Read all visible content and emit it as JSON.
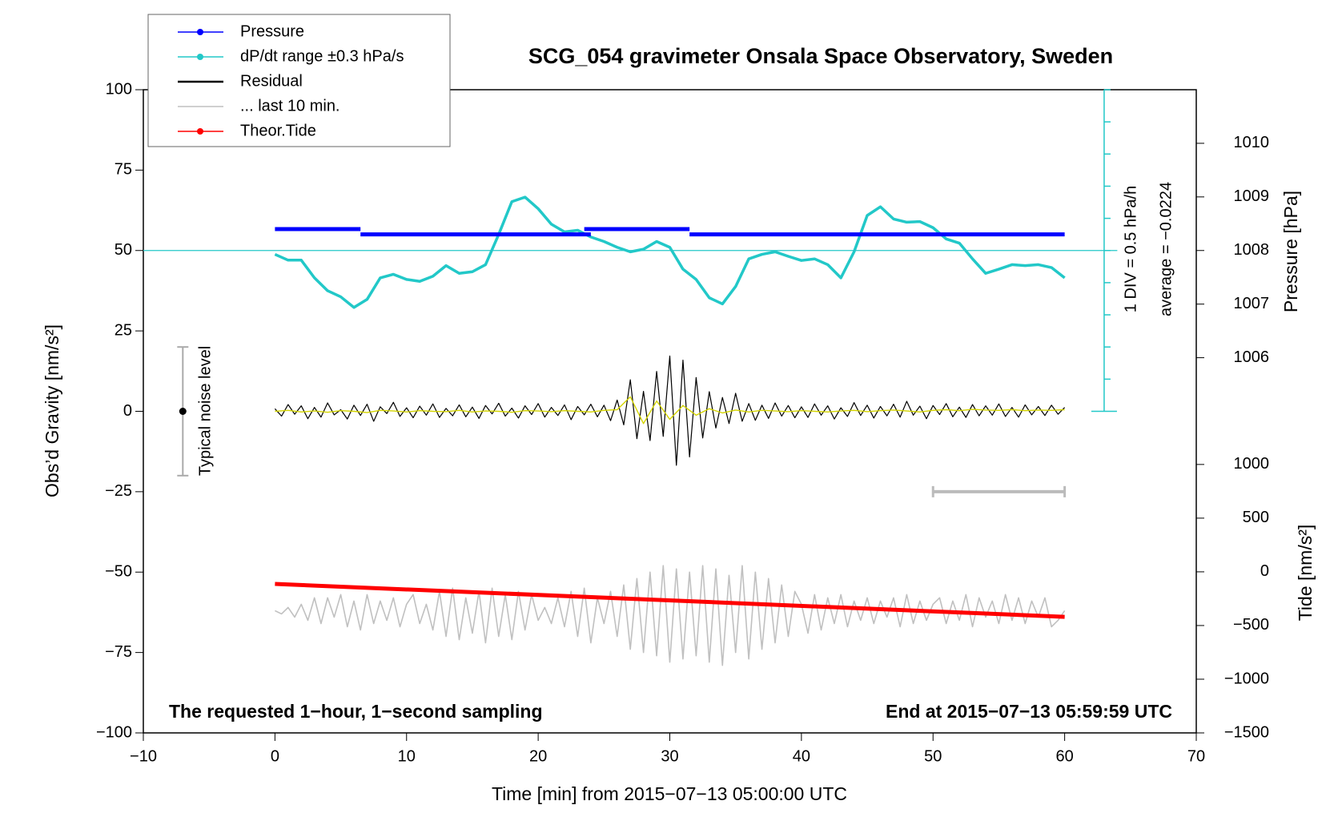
{
  "chart_data": {
    "type": "line",
    "title": "SCG_054 gravimeter Onsala Space Observatory, Sweden",
    "xlabel": "Time [min] from 2015−07−13 05:00:00 UTC",
    "ylabel": "Obs’d Gravity [nm/s²]",
    "y2label": "Pressure [hPa]",
    "y3label": "Tide [nm/s²]",
    "annotation_left": "The requested 1−hour, 1−second sampling",
    "annotation_right": "End at 2015−07−13 05:59:59 UTC",
    "xlim": [
      -10,
      70
    ],
    "xticks": [
      {
        "value": -10,
        "label": "−10"
      },
      0,
      10,
      20,
      30,
      40,
      50,
      60,
      70
    ],
    "ylim": [
      -100,
      100
    ],
    "yticks": [
      {
        "value": -100,
        "label": "−100"
      },
      {
        "value": -75,
        "label": "−75"
      },
      {
        "value": -50,
        "label": "−50"
      },
      {
        "value": -25,
        "label": "−25"
      },
      0,
      25,
      50,
      75,
      100
    ],
    "y2lim": [
      999,
      1011
    ],
    "y2ticks": [
      1006,
      1007,
      1008,
      1009,
      1010
    ],
    "y3lim": [
      -1500,
      4490
    ],
    "y3ticks": [
      {
        "value": -1500,
        "label": "−1500"
      },
      {
        "value": -1000,
        "label": "−1000"
      },
      {
        "value": -500,
        "label": "−500"
      },
      0,
      500,
      1000
    ],
    "grid": false,
    "legend": "upper left",
    "noise_bar": {
      "x": -7,
      "value": 0,
      "range": 20,
      "label": "Typical noise level"
    },
    "last10_bar": {
      "x": [
        50,
        60
      ],
      "value": -25
    },
    "dpdt_scale": {
      "x": 63,
      "ticks": [
        0,
        10,
        20,
        30,
        40,
        50,
        60,
        70,
        80,
        90,
        100
      ],
      "average_line": {
        "value": 50,
        "x": [
          -10,
          64
        ]
      },
      "label": "1 DIV = 0.5 hPa/h",
      "average_label": "average = −0.0224"
    },
    "series": [
      {
        "name": "Pressure",
        "color": "#0000ff",
        "marker": true,
        "axis": "y2",
        "x": [
          0,
          6.5,
          6.5,
          6.5,
          24,
          24,
          23.5,
          31.5,
          31.5,
          31.5,
          60
        ],
        "values": [
          1008.4,
          1008.4,
          null,
          1008.3,
          1008.3,
          null,
          1008.4,
          1008.4,
          null,
          1008.3,
          1008.3
        ]
      },
      {
        "name": "dP/dt range ±0.3 hPa/s",
        "color": "#22c8c8",
        "marker": true,
        "x": [
          0,
          1,
          2,
          3,
          4,
          5,
          6,
          7,
          8,
          9,
          10,
          11,
          12,
          13,
          14,
          15,
          16,
          17,
          18,
          19,
          20,
          21,
          22,
          23,
          24,
          25,
          26,
          27,
          28,
          29,
          30,
          31,
          32,
          33,
          34,
          35,
          36,
          37,
          38,
          39,
          40,
          41,
          42,
          43,
          44,
          45,
          46,
          47,
          48,
          49,
          50,
          51,
          52,
          53,
          54,
          55,
          56,
          57,
          58,
          59,
          60
        ],
        "values": [
          48.8,
          47,
          47,
          41.5,
          37.5,
          35.6,
          32.3,
          34.8,
          41.5,
          42.6,
          41,
          40.4,
          42,
          45.3,
          42.9,
          43.4,
          45.6,
          55,
          65.2,
          66.6,
          63,
          58.2,
          55.8,
          56.3,
          54.2,
          52.8,
          51,
          49.6,
          50.4,
          52.8,
          51,
          44.2,
          41,
          35.3,
          33.4,
          38.8,
          47.4,
          48.8,
          49.6,
          48.2,
          46.9,
          47.4,
          45.6,
          41.5,
          49.6,
          60.9,
          63.6,
          59.8,
          58.8,
          59,
          57.1,
          53.6,
          52.3,
          47.4,
          42.9,
          44.2,
          45.6,
          45.3,
          45.6,
          44.7,
          41.5
        ]
      },
      {
        "name": "Residual",
        "color": "#000000",
        "x": [
          0,
          0.5,
          1,
          1.5,
          2,
          2.5,
          3,
          3.5,
          4,
          4.5,
          5,
          5.5,
          6,
          6.5,
          7,
          7.5,
          8,
          8.5,
          9,
          9.5,
          10,
          10.5,
          11,
          11.5,
          12,
          12.5,
          13,
          13.5,
          14,
          14.5,
          15,
          15.5,
          16,
          16.5,
          17,
          17.5,
          18,
          18.5,
          19,
          19.5,
          20,
          20.5,
          21,
          21.5,
          22,
          22.5,
          23,
          23.5,
          24,
          24.5,
          25,
          25.5,
          26,
          26.5,
          27,
          27.5,
          28,
          28.5,
          29,
          29.5,
          30,
          30.5,
          31,
          31.5,
          32,
          32.5,
          33,
          33.5,
          34,
          34.5,
          35,
          35.5,
          36,
          36.5,
          37,
          37.5,
          38,
          38.5,
          39,
          39.5,
          40,
          40.5,
          41,
          41.5,
          42,
          42.5,
          43,
          43.5,
          44,
          44.5,
          45,
          45.5,
          46,
          46.5,
          47,
          47.5,
          48,
          48.5,
          49,
          49.5,
          50,
          50.5,
          51,
          51.5,
          52,
          52.5,
          53,
          53.5,
          54,
          54.5,
          55,
          55.5,
          56,
          56.5,
          57,
          57.5,
          58,
          58.5,
          59,
          59.5,
          60
        ],
        "values": [
          0.8,
          -1.5,
          2.1,
          -0.9,
          1.7,
          -2.3,
          1.2,
          -1.8,
          2.6,
          -1.1,
          0.5,
          -2.4,
          1.9,
          -1.3,
          2.2,
          -3.1,
          1.4,
          -0.7,
          2.8,
          -1.6,
          1.1,
          -2.0,
          1.6,
          -1.2,
          2.3,
          -1.9,
          0.9,
          -1.4,
          2.0,
          -1.7,
          1.3,
          -2.2,
          1.8,
          -0.8,
          2.5,
          -1.5,
          1.0,
          -2.1,
          1.7,
          -1.0,
          2.4,
          -1.8,
          1.2,
          -1.3,
          2.0,
          -2.6,
          1.5,
          -1.1,
          2.2,
          -1.7,
          1.9,
          -2.9,
          3.5,
          -4.2,
          9.8,
          -8.5,
          6.2,
          -9.1,
          12.4,
          -7.8,
          17.2,
          -16.8,
          15.9,
          -14.2,
          10.5,
          -8.3,
          6.1,
          -5.2,
          4.3,
          -3.8,
          5.6,
          -3.1,
          2.4,
          -2.8,
          1.9,
          -2.2,
          2.6,
          -1.5,
          1.8,
          -2.0,
          1.4,
          -1.9,
          2.3,
          -1.2,
          1.7,
          -2.4,
          1.1,
          -1.6,
          2.7,
          -1.3,
          1.9,
          -2.1,
          1.5,
          -1.4,
          2.2,
          -1.8,
          3.1,
          -1.2,
          1.6,
          -2.3,
          1.8,
          -1.0,
          2.4,
          -1.7,
          1.3,
          -1.9,
          2.1,
          -1.4,
          1.7,
          -1.2,
          2.3,
          -1.6,
          1.2,
          -1.8,
          2.0,
          -1.1,
          1.5,
          -1.3,
          1.9,
          -0.9,
          1.2
        ]
      },
      {
        "name": "... last 10 min.",
        "color": "#c0c0c0",
        "x": [
          0,
          0.5,
          1,
          1.5,
          2,
          2.5,
          3,
          3.5,
          4,
          4.5,
          5,
          5.5,
          6,
          6.5,
          7,
          7.5,
          8,
          8.5,
          9,
          9.5,
          10,
          10.5,
          11,
          11.5,
          12,
          12.5,
          13,
          13.5,
          14,
          14.5,
          15,
          15.5,
          16,
          16.5,
          17,
          17.5,
          18,
          18.5,
          19,
          19.5,
          20,
          20.5,
          21,
          21.5,
          22,
          22.5,
          23,
          23.5,
          24,
          24.5,
          25,
          25.5,
          26,
          26.5,
          27,
          27.5,
          28,
          28.5,
          29,
          29.5,
          30,
          30.5,
          31,
          31.5,
          32,
          32.5,
          33,
          33.5,
          34,
          34.5,
          35,
          35.5,
          36,
          36.5,
          37,
          37.5,
          38,
          38.5,
          39,
          39.5,
          40,
          40.5,
          41,
          41.5,
          42,
          42.5,
          43,
          43.5,
          44,
          44.5,
          45,
          45.5,
          46,
          46.5,
          47,
          47.5,
          48,
          48.5,
          49,
          49.5,
          50,
          50.5,
          51,
          51.5,
          52,
          52.5,
          53,
          53.5,
          54,
          54.5,
          55,
          55.5,
          56,
          56.5,
          57,
          57.5,
          58,
          58.5,
          59,
          59.5,
          60
        ],
        "values": [
          -62,
          -63,
          -61,
          -64,
          -60,
          -65,
          -58,
          -66,
          -58,
          -64,
          -57,
          -67,
          -59,
          -68,
          -57,
          -66,
          -59,
          -65,
          -58,
          -67,
          -60,
          -57,
          -66,
          -60,
          -68,
          -56,
          -70,
          -55,
          -71,
          -58,
          -69,
          -56,
          -72,
          -55,
          -70,
          -57,
          -71,
          -56,
          -68,
          -57,
          -65,
          -61,
          -66,
          -58,
          -67,
          -56,
          -70,
          -55,
          -72,
          -58,
          -66,
          -56,
          -70,
          -54,
          -74,
          -52,
          -75,
          -50,
          -76,
          -48,
          -78,
          -49,
          -77,
          -50,
          -76,
          -48,
          -78,
          -49,
          -79,
          -51,
          -75,
          -48,
          -77,
          -50,
          -74,
          -52,
          -72,
          -54,
          -70,
          -56,
          -60,
          -69,
          -57,
          -68,
          -58,
          -66,
          -57,
          -67,
          -59,
          -65,
          -58,
          -66,
          -59,
          -64,
          -58,
          -67,
          -57,
          -66,
          -59,
          -65,
          -60,
          -58,
          -66,
          -59,
          -65,
          -57,
          -67,
          -58,
          -64,
          -59,
          -66,
          -57,
          -65,
          -58,
          -66,
          -59,
          -64,
          -58,
          -67,
          -65,
          -62
        ]
      },
      {
        "name": "Theor.Tide",
        "color": "#ff0000",
        "marker": true,
        "axis": "y3",
        "x": [
          0,
          60
        ],
        "values": [
          -113,
          -419
        ]
      },
      {
        "color": "#d4d400",
        "x": [
          0,
          1,
          2,
          3,
          4,
          5,
          6,
          7,
          8,
          9,
          10,
          11,
          12,
          13,
          14,
          15,
          16,
          17,
          18,
          19,
          20,
          21,
          22,
          23,
          24,
          25,
          26,
          27,
          28,
          29,
          30,
          31,
          32,
          33,
          34,
          35,
          36,
          37,
          38,
          39,
          40,
          41,
          42,
          43,
          44,
          45,
          46,
          47,
          48,
          49,
          50,
          51,
          52,
          53,
          54,
          55,
          56,
          57,
          58,
          59,
          60
        ],
        "values": [
          0,
          0.3,
          -0.2,
          0.1,
          -0.3,
          0.2,
          0,
          -0.4,
          0.3,
          0.1,
          -0.2,
          0.2,
          0,
          -0.1,
          0.3,
          -0.2,
          0.1,
          0,
          -0.3,
          0.2,
          0.1,
          -0.1,
          0.2,
          0,
          -0.2,
          0.3,
          0.5,
          4.5,
          -3.8,
          3.2,
          -2.5,
          1.8,
          -1.2,
          0.8,
          -0.5,
          0.4,
          -0.2,
          0.3,
          0.1,
          -0.1,
          0.2,
          0,
          -0.2,
          0.1,
          0.3,
          -0.1,
          0.2,
          0.4,
          0.1,
          -0.2,
          0.3,
          0.5,
          0.2,
          0.6,
          0.4,
          0.3,
          0.5,
          0.2,
          0.4,
          0.3,
          0.5
        ]
      }
    ]
  }
}
